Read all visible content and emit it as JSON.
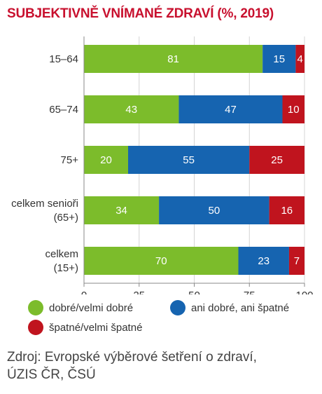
{
  "title": "SUBJEKTIVNĚ VNÍMANÉ ZDRAVÍ (%, 2019)",
  "chart_data": {
    "type": "bar",
    "orientation": "horizontal",
    "stacked": true,
    "categories": [
      [
        "15–64"
      ],
      [
        "65–74"
      ],
      [
        "75+"
      ],
      [
        "celkem senioři",
        "(65+)"
      ],
      [
        "celkem",
        "(15+)"
      ]
    ],
    "series": [
      {
        "name": "dobré/velmi dobré",
        "color": "#7cbc2b",
        "values": [
          81,
          43,
          20,
          34,
          70
        ]
      },
      {
        "name": "ani dobré, ani špatné",
        "color": "#1664b0",
        "values": [
          15,
          47,
          55,
          50,
          23
        ]
      },
      {
        "name": "špatné/velmi špatné",
        "color": "#c0141e",
        "values": [
          4,
          10,
          25,
          16,
          7
        ]
      }
    ],
    "xlim": [
      0,
      100
    ],
    "xticks": [
      0,
      25,
      50,
      75,
      100
    ],
    "grid": true,
    "legend_position": "bottom"
  },
  "legend_items": [
    "dobré/velmi dobré",
    "ani dobré, ani špatné",
    "špatné/velmi špatné"
  ],
  "colors": {
    "title": "#c8102e",
    "green": "#7cbc2b",
    "blue": "#1664b0",
    "red": "#c0141e"
  },
  "source_lines": [
    "Zdroj: Evropské výběrové šetření o zdraví,",
    "ÚZIS ČR, ČSÚ"
  ]
}
